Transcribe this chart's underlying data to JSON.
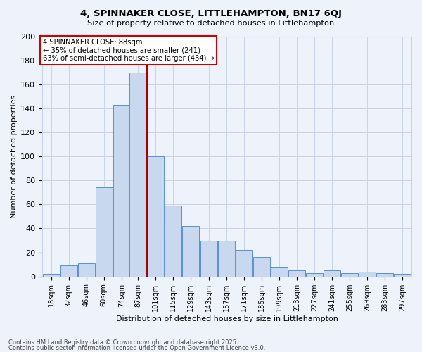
{
  "title1": "4, SPINNAKER CLOSE, LITTLEHAMPTON, BN17 6QJ",
  "title2": "Size of property relative to detached houses in Littlehampton",
  "xlabel": "Distribution of detached houses by size in Littlehampton",
  "ylabel": "Number of detached properties",
  "bin_edges": [
    11,
    25,
    39,
    53,
    67,
    80,
    94,
    108,
    122,
    136,
    150,
    164,
    178,
    192,
    206,
    220,
    234,
    248,
    262,
    276,
    290,
    304
  ],
  "bin_centers": [
    18,
    32,
    46,
    60,
    74,
    87,
    101,
    115,
    129,
    143,
    157,
    171,
    185,
    199,
    213,
    227,
    241,
    255,
    269,
    283,
    297
  ],
  "bin_labels": [
    "18sqm",
    "32sqm",
    "46sqm",
    "60sqm",
    "74sqm",
    "87sqm",
    "101sqm",
    "115sqm",
    "129sqm",
    "143sqm",
    "157sqm",
    "171sqm",
    "185sqm",
    "199sqm",
    "213sqm",
    "227sqm",
    "241sqm",
    "255sqm",
    "269sqm",
    "283sqm",
    "297sqm"
  ],
  "values": [
    2,
    9,
    11,
    74,
    143,
    170,
    100,
    59,
    42,
    30,
    30,
    22,
    16,
    8,
    5,
    3,
    5,
    3,
    4,
    3,
    2
  ],
  "bar_color": "#c8d8ef",
  "bar_edge_color": "#5a8fd8",
  "property_sqm": 88,
  "vline_bin_index": 5,
  "vline_color": "#aa0000",
  "annotation_text": "4 SPINNAKER CLOSE: 88sqm\n← 35% of detached houses are smaller (241)\n63% of semi-detached houses are larger (434) →",
  "annotation_box_color": "#cc0000",
  "annotation_bg_color": "#ffffff",
  "grid_color": "#c8d4e8",
  "bg_color": "#eef2fb",
  "footer1": "Contains HM Land Registry data © Crown copyright and database right 2025.",
  "footer2": "Contains public sector information licensed under the Open Government Licence v3.0.",
  "ylim": [
    0,
    200
  ],
  "yticks": [
    0,
    20,
    40,
    60,
    80,
    100,
    120,
    140,
    160,
    180,
    200
  ]
}
